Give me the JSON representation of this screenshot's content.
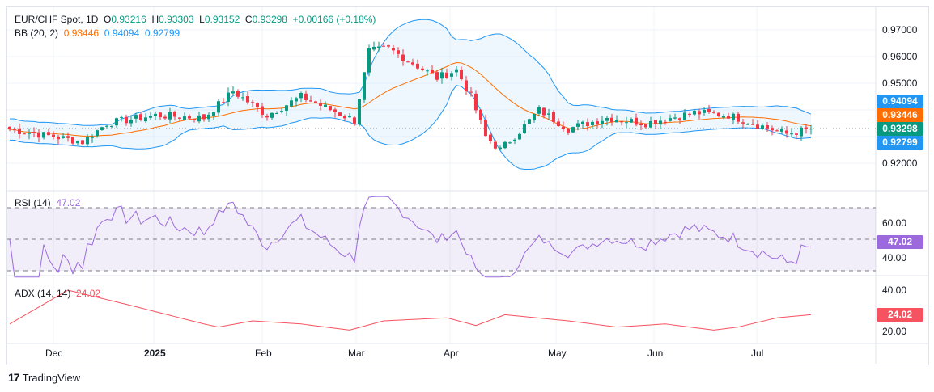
{
  "header": {
    "symbol": "EUR/CHF Spot, 1D",
    "o_label": "O",
    "o": "0.93216",
    "h_label": "H",
    "h": "0.93303",
    "l_label": "L",
    "l": "0.93152",
    "c_label": "C",
    "c": "0.93298",
    "change": "+0.00166 (+0.18%)"
  },
  "bb": {
    "label": "BB (20, 2)",
    "basis": "0.93446",
    "upper": "0.94094",
    "lower": "0.92799"
  },
  "rsi": {
    "label": "RSI (14)",
    "value": "47.02"
  },
  "adx": {
    "label": "ADX (14, 14)",
    "value": "24.02"
  },
  "price_axis": [
    "0.97000",
    "0.96000",
    "0.95000",
    "0.92000"
  ],
  "rsi_axis": [
    "60.00",
    "40.00"
  ],
  "adx_axis": [
    "40.00",
    "20.00"
  ],
  "tags": {
    "upper": "0.94094",
    "basis": "0.93446",
    "close": "0.93298",
    "lower": "0.92799",
    "rsi": "47.02",
    "adx": "24.02"
  },
  "time_axis": [
    "Dec",
    "2025",
    "Feb",
    "Mar",
    "Apr",
    "May",
    "Jun",
    "Jul"
  ],
  "brand": "TradingView",
  "colors": {
    "up": "#089981",
    "down": "#f23645",
    "basis": "#ff6d00",
    "band": "#2196f3",
    "rsi": "#9c6ade",
    "adx": "#f7525f"
  },
  "chart_data": {
    "type": "candlestick",
    "title": "EUR/CHF Spot, 1D",
    "bars": 165,
    "close_keypoints": [
      [
        0,
        0.9327
      ],
      [
        9,
        0.93
      ],
      [
        15,
        0.928
      ],
      [
        20,
        0.935
      ],
      [
        30,
        0.938
      ],
      [
        40,
        0.937
      ],
      [
        46,
        0.947
      ],
      [
        53,
        0.938
      ],
      [
        60,
        0.945
      ],
      [
        71,
        0.936
      ],
      [
        74,
        0.962
      ],
      [
        78,
        0.963
      ],
      [
        88,
        0.952
      ],
      [
        92,
        0.955
      ],
      [
        95,
        0.945
      ],
      [
        98,
        0.93
      ],
      [
        101,
        0.925
      ],
      [
        105,
        0.932
      ],
      [
        109,
        0.94
      ],
      [
        115,
        0.933
      ],
      [
        123,
        0.937
      ],
      [
        131,
        0.935
      ],
      [
        141,
        0.939
      ],
      [
        148,
        0.938
      ],
      [
        153,
        0.935
      ],
      [
        160,
        0.931
      ],
      [
        165,
        0.93298
      ]
    ],
    "adx_keypoints": [
      [
        0,
        18
      ],
      [
        12,
        40
      ],
      [
        25,
        30
      ],
      [
        40,
        18
      ],
      [
        43,
        16
      ],
      [
        50,
        20
      ],
      [
        60,
        18
      ],
      [
        70,
        14
      ],
      [
        77,
        20
      ],
      [
        90,
        22
      ],
      [
        96,
        17
      ],
      [
        102,
        24
      ],
      [
        115,
        20
      ],
      [
        125,
        16
      ],
      [
        135,
        18
      ],
      [
        145,
        14
      ],
      [
        150,
        16
      ],
      [
        158,
        22
      ],
      [
        165,
        24.02
      ]
    ],
    "price_range": [
      0.915,
      0.9715
    ],
    "rsi_levels": [
      70,
      50,
      30
    ],
    "adx_range": [
      10,
      45
    ]
  }
}
